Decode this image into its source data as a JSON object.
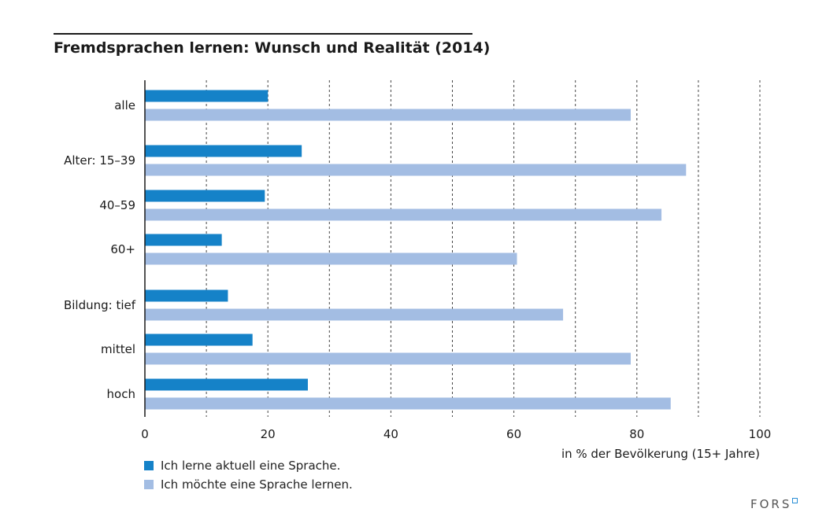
{
  "chart_data": {
    "type": "bar",
    "orientation": "horizontal",
    "title": "Fremdsprachen lernen: Wunsch und Realität (2014)",
    "xlabel": "in % der Bevölkerung (15+ Jahre)",
    "xlim": [
      0,
      100
    ],
    "xticks": [
      0,
      20,
      40,
      60,
      80,
      100
    ],
    "grid": "vertical dashed",
    "legend_position": "bottom-left",
    "categories": [
      "alle",
      "Alter: 15–39",
      "40–59",
      "60+",
      "Bildung: tief",
      "mittel",
      "hoch"
    ],
    "series": [
      {
        "name": "Ich lerne aktuell eine Sprache.",
        "color": "#1582c8",
        "values": [
          20,
          25.5,
          19.5,
          12.5,
          13.5,
          17.5,
          26.5
        ]
      },
      {
        "name": "Ich möchte eine Sprache lernen.",
        "color": "#a3bde3",
        "values": [
          79,
          88,
          84,
          60.5,
          68,
          79,
          85.5
        ]
      }
    ]
  },
  "branding": {
    "logo_text": "FORS",
    "logo_color": "#2a8fd6"
  }
}
